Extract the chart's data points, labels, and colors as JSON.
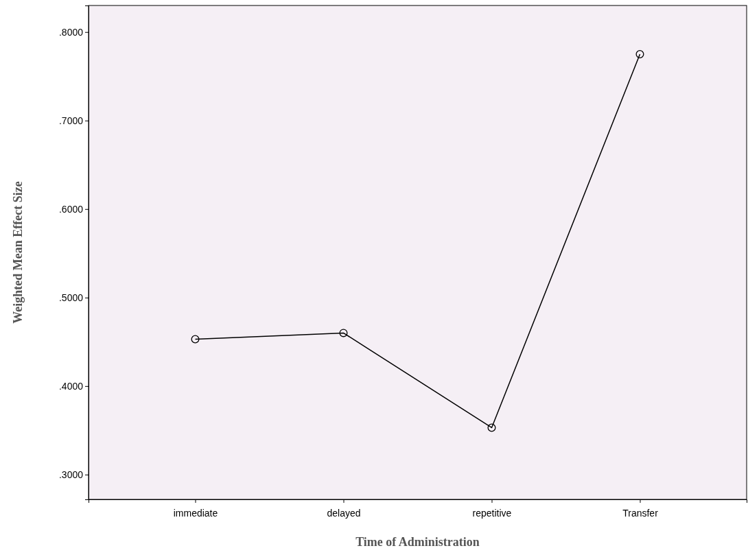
{
  "chart_data": {
    "type": "line",
    "xlabel": "Time of Administration",
    "ylabel": "Weighted Mean Effect Size",
    "categories": [
      "immediate",
      "delayed",
      "repetitive",
      "Transfer"
    ],
    "series": [
      {
        "color": "#000000",
        "values": [
          0.453,
          0.46,
          0.353,
          0.775
        ]
      }
    ],
    "ylim": [
      0.272,
      0.83
    ],
    "yticks": [
      {
        "value": 0.3,
        "label": ".3000"
      },
      {
        "value": 0.4,
        "label": ".4000"
      },
      {
        "value": 0.5,
        "label": ".5000"
      },
      {
        "value": 0.6,
        "label": ".6000"
      },
      {
        "value": 0.7,
        "label": ".7000"
      },
      {
        "value": 0.8,
        "label": ".8000"
      }
    ],
    "marker": "circle",
    "line_style": "solid",
    "grid": false,
    "legend": false
  }
}
